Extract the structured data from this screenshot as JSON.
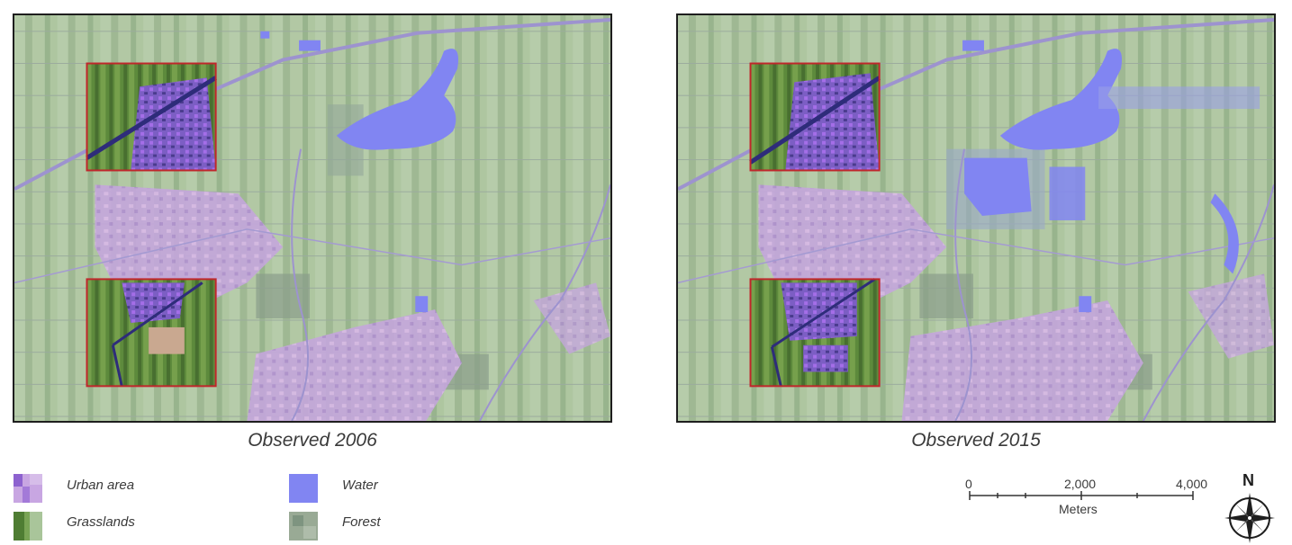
{
  "maps": [
    {
      "caption": "Observed 2006",
      "year": "2006"
    },
    {
      "caption": "Observed 2015",
      "year": "2015"
    }
  ],
  "legend": {
    "items": [
      {
        "label": "Urban area",
        "color": "#b68ce0"
      },
      {
        "label": "Grasslands",
        "color": "#6a9a45"
      },
      {
        "label": "Water",
        "color": "#8185f2"
      },
      {
        "label": "Forest",
        "color": "#8fa08c"
      }
    ]
  },
  "scale_bar": {
    "ticks": [
      "0",
      "2,000",
      "4,000"
    ],
    "unit": "Meters"
  },
  "north_arrow": {
    "label": "N"
  },
  "colors": {
    "inset_border": "#c0262b",
    "map_border": "#1e1e1e",
    "base_green": "#a6bf98",
    "urban": "#c6a8e0",
    "water": "#8185f2",
    "road": "#9d93cf"
  }
}
